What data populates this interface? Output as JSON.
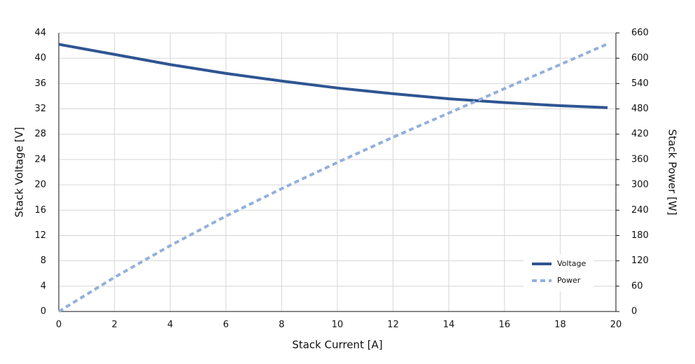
{
  "chart_data": {
    "type": "line",
    "x_label": "Stack Current [A]",
    "y_label": "Stack Voltage [V]",
    "y2_label": "Stack Power [W]",
    "x": [
      0,
      2,
      4,
      6,
      8,
      10,
      12,
      14,
      16,
      18,
      19.7
    ],
    "series": [
      {
        "name": "Voltage",
        "color": "#2f5592",
        "style": "solid",
        "values": [
          42.2,
          40.6,
          39.0,
          37.6,
          36.4,
          35.3,
          34.4,
          33.6,
          33.0,
          32.5,
          32.2
        ]
      },
      {
        "name": "Power",
        "color": "#93b0dc",
        "style": "dotted",
        "axis": "y2",
        "values": [
          0,
          81,
          156,
          226,
          291,
          353,
          413,
          470,
          528,
          585,
          634
        ]
      }
    ],
    "xlim": [
      0,
      20
    ],
    "xticks": [
      0,
      2,
      4,
      6,
      8,
      10,
      12,
      14,
      16,
      18,
      20
    ],
    "ylim": [
      0,
      44
    ],
    "yticks": [
      0,
      4,
      8,
      12,
      16,
      20,
      24,
      28,
      32,
      36,
      40,
      44
    ],
    "y2lim": [
      0,
      660
    ],
    "y2ticks": [
      0,
      60,
      120,
      180,
      240,
      300,
      360,
      420,
      480,
      540,
      600,
      660
    ],
    "grid": true,
    "legend": "lower right"
  }
}
